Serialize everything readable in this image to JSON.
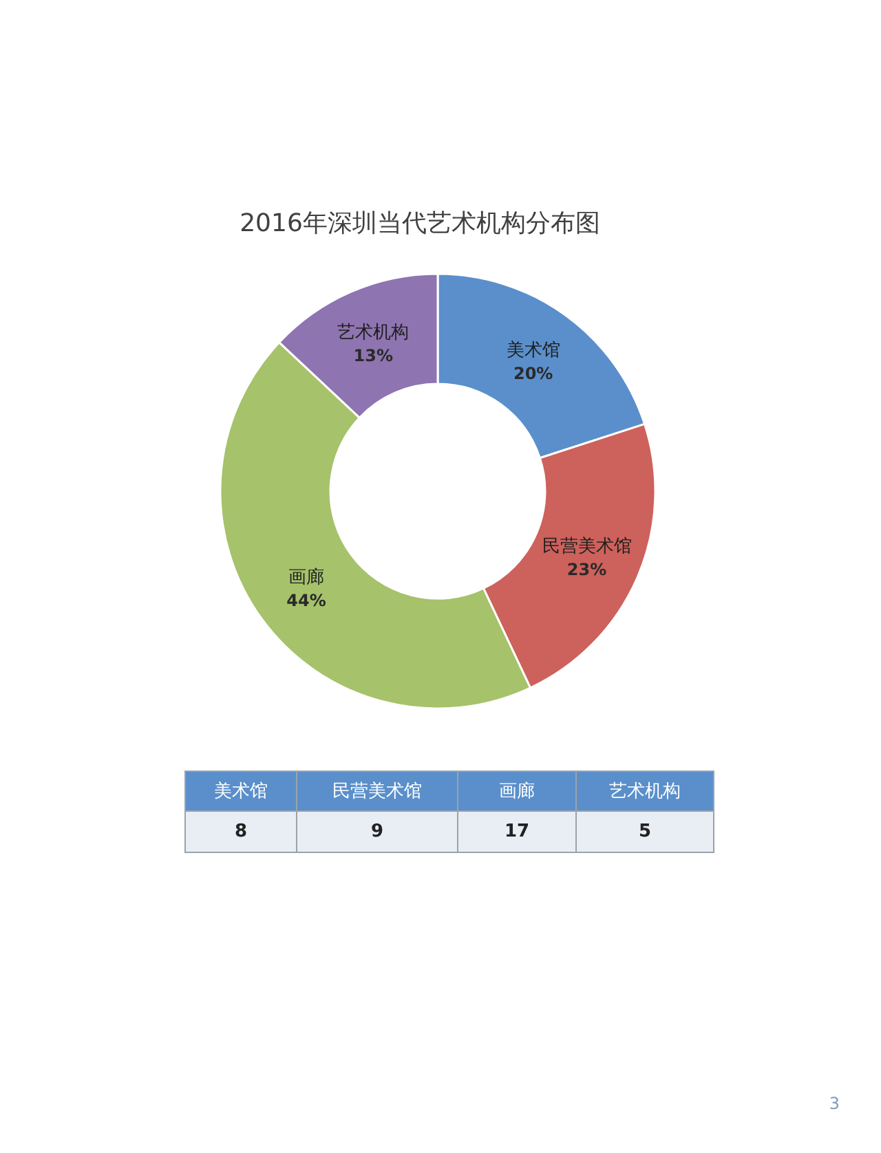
{
  "chart_data": [
    {
      "type": "donut",
      "title": "2016年深圳当代艺术机构分布图",
      "categories": [
        "美术馆",
        "民营美术馆",
        "画廊",
        "艺术机构"
      ],
      "values": [
        20,
        23,
        44,
        13
      ],
      "colors": [
        "#5a8fcb",
        "#cd615b",
        "#a6c26a",
        "#8e74b0"
      ],
      "value_labels": [
        "20%",
        "23%",
        "44%",
        "13%"
      ],
      "annotations": [
        "3"
      ]
    },
    {
      "type": "other",
      "categories": [
        "美术馆",
        "民营美术馆",
        "画廊",
        "艺术机构"
      ],
      "values": [
        8,
        9,
        17,
        5
      ],
      "data_labels": true
    }
  ]
}
